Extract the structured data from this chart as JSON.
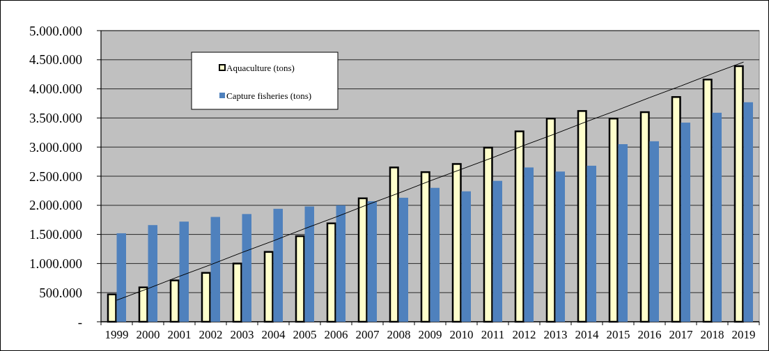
{
  "chart_data": {
    "type": "bar",
    "categories": [
      "1999",
      "2000",
      "2001",
      "2002",
      "2003",
      "2004",
      "2005",
      "2006",
      "2007",
      "2008",
      "2009",
      "2010",
      "2011",
      "2012",
      "2013",
      "2014",
      "2015",
      "2016",
      "2017",
      "2018",
      "2019"
    ],
    "series": [
      {
        "name": "Aquaculture (tons)",
        "color": "#ffffcc",
        "values": [
          470000,
          590000,
          710000,
          840000,
          1000000,
          1200000,
          1470000,
          1690000,
          2120000,
          2650000,
          2570000,
          2710000,
          2990000,
          3270000,
          3490000,
          3620000,
          3490000,
          3600000,
          3860000,
          4160000,
          4390000
        ]
      },
      {
        "name": "Capture fisheries (tons)",
        "color": "#4f81bd",
        "values": [
          1520000,
          1660000,
          1720000,
          1800000,
          1850000,
          1940000,
          1980000,
          2000000,
          2070000,
          2130000,
          2300000,
          2240000,
          2420000,
          2650000,
          2580000,
          2680000,
          3050000,
          3100000,
          3420000,
          3590000,
          3770000
        ]
      },
      {
        "type": "line",
        "color": "#000000",
        "values": [
          370000,
          570000,
          780000,
          980000,
          1190000,
          1390000,
          1600000,
          1800000,
          2010000,
          2210000,
          2420000,
          2620000,
          2820000,
          3030000,
          3230000,
          3440000,
          3640000,
          3850000,
          4050000,
          4260000,
          4460000
        ]
      }
    ],
    "ylim": [
      0,
      5000000
    ],
    "yticks": [
      {
        "value": 0,
        "label": "-"
      },
      {
        "value": 500000,
        "label": "500.000"
      },
      {
        "value": 1000000,
        "label": "1.000.000"
      },
      {
        "value": 1500000,
        "label": "1.500.000"
      },
      {
        "value": 2000000,
        "label": "2.000.000"
      },
      {
        "value": 2500000,
        "label": "2.500.000"
      },
      {
        "value": 3000000,
        "label": "3.000.000"
      },
      {
        "value": 3500000,
        "label": "3.500.000"
      },
      {
        "value": 4000000,
        "label": "4.000.000"
      },
      {
        "value": 4500000,
        "label": "4.500.000"
      },
      {
        "value": 5000000,
        "label": "5.000.000"
      }
    ],
    "grid": "y",
    "legend": "top left",
    "marker": "none"
  }
}
